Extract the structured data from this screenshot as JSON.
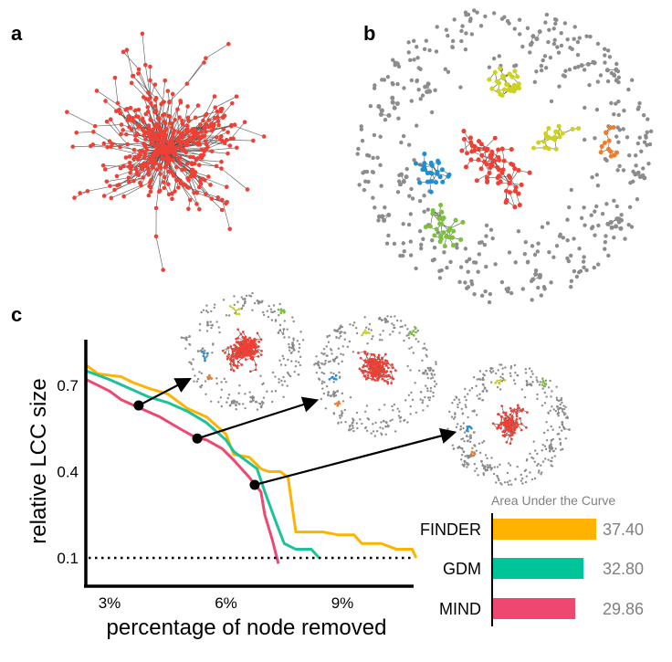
{
  "panels": {
    "a": "a",
    "b": "b",
    "c": "c"
  },
  "chart_data": [
    {
      "type": "line",
      "xlabel": "percentage of node removed",
      "ylabel": "relative LCC size",
      "xlim": [
        2.4,
        10.9
      ],
      "ylim": [
        0.0,
        0.86
      ],
      "x_ticks": [
        {
          "value": 3,
          "label": "3%"
        },
        {
          "value": 6,
          "label": "6%"
        },
        {
          "value": 9,
          "label": "9%"
        }
      ],
      "y_ticks": [
        {
          "value": 0.1,
          "label": "0.1"
        },
        {
          "value": 0.4,
          "label": "0.4"
        },
        {
          "value": 0.7,
          "label": "0.7"
        }
      ],
      "threshold_line": 0.1,
      "grid": false,
      "series": [
        {
          "name": "FINDER",
          "color": "#FFB300",
          "x": [
            2.4,
            2.7,
            3.3,
            3.6,
            4.0,
            4.5,
            5.0,
            5.5,
            6.0,
            6.2,
            6.6,
            6.9,
            7.1,
            7.4,
            7.6,
            7.8,
            8.0,
            8.5,
            8.9,
            9.3,
            9.5,
            10.0,
            10.4,
            10.8,
            10.9
          ],
          "y": [
            0.77,
            0.74,
            0.73,
            0.71,
            0.69,
            0.67,
            0.62,
            0.59,
            0.53,
            0.46,
            0.45,
            0.41,
            0.4,
            0.4,
            0.38,
            0.19,
            0.19,
            0.19,
            0.18,
            0.18,
            0.15,
            0.15,
            0.13,
            0.13,
            0.1
          ]
        },
        {
          "name": "GDM",
          "color": "#1CC39A",
          "x": [
            2.4,
            3.0,
            3.5,
            4.0,
            4.5,
            5.0,
            5.5,
            6.0,
            6.2,
            6.5,
            6.8,
            7.0,
            7.3,
            7.5,
            7.8,
            8.2,
            8.4
          ],
          "y": [
            0.75,
            0.72,
            0.69,
            0.66,
            0.64,
            0.61,
            0.57,
            0.51,
            0.47,
            0.44,
            0.41,
            0.33,
            0.22,
            0.15,
            0.13,
            0.13,
            0.1
          ]
        },
        {
          "name": "MIND",
          "color": "#EC4870",
          "x": [
            2.4,
            3.0,
            3.3,
            3.8,
            4.3,
            4.8,
            5.2,
            5.5,
            5.9,
            6.2,
            6.6,
            6.9,
            7.0,
            7.2,
            7.35
          ],
          "y": [
            0.72,
            0.68,
            0.65,
            0.62,
            0.59,
            0.55,
            0.52,
            0.51,
            0.48,
            0.44,
            0.38,
            0.33,
            0.25,
            0.16,
            0.08
          ]
        }
      ],
      "snapshots": [
        {
          "x": 3.75,
          "y": 0.63
        },
        {
          "x": 5.26,
          "y": 0.515
        },
        {
          "x": 6.74,
          "y": 0.354
        }
      ]
    },
    {
      "type": "bar",
      "orientation": "horizontal",
      "title": "Area Under the Curve",
      "categories": [
        "FINDER",
        "GDM",
        "MIND"
      ],
      "values": [
        37.4,
        32.8,
        29.86
      ],
      "value_labels": [
        "37.40",
        "32.80",
        "29.86"
      ],
      "colors": [
        "#FFB300",
        "#00C49A",
        "#EE4870"
      ]
    }
  ],
  "network_colors": {
    "node": "#EE4035",
    "edge": "#555555",
    "isolated": "#8C8C8C",
    "yellow": "#CCD21E",
    "blue": "#1E8FD6",
    "green": "#7CC13A",
    "orange": "#F07D2A"
  }
}
